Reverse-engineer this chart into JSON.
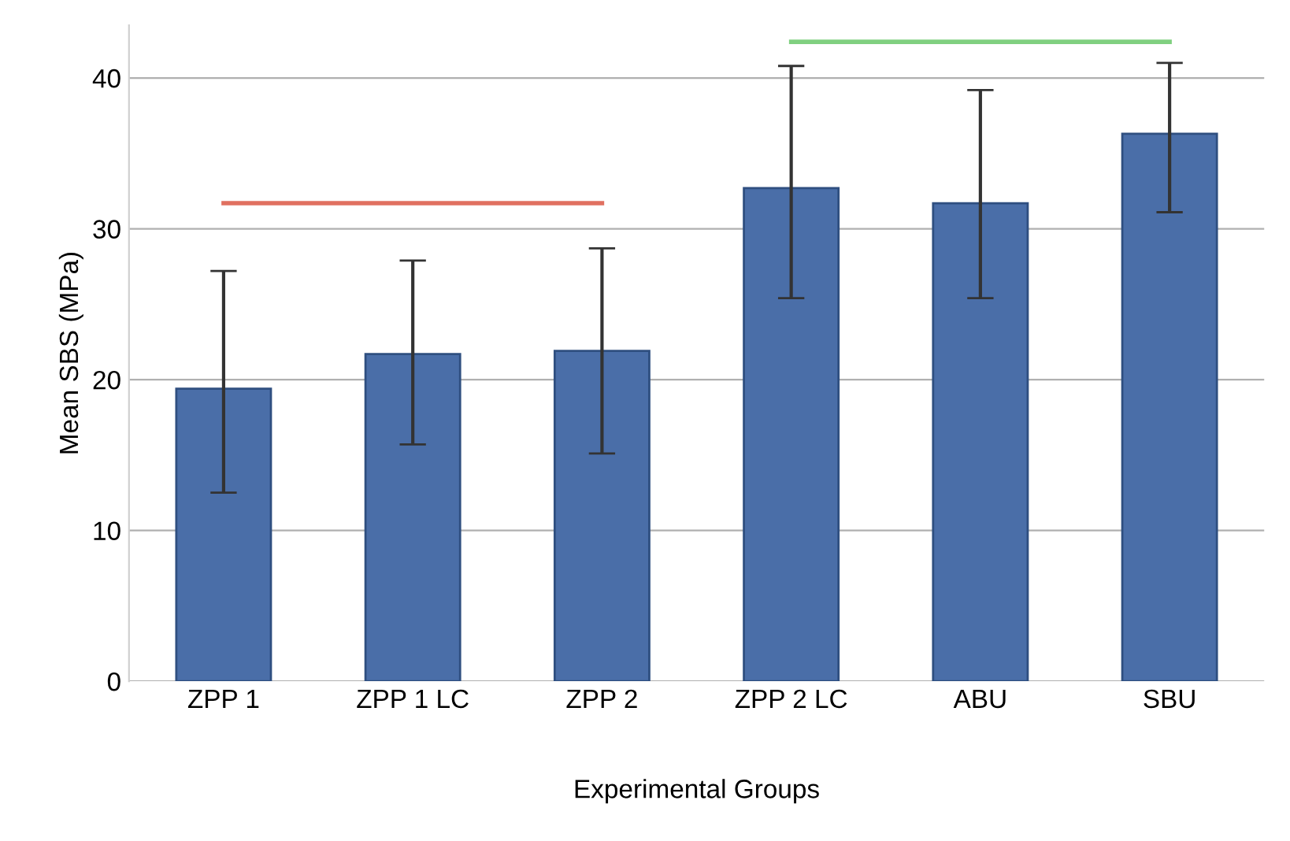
{
  "chart_data": {
    "type": "bar",
    "xlabel": "Experimental Groups",
    "ylabel": "Mean SBS (MPa)",
    "categories": [
      "ZPP 1",
      "ZPP 1 LC",
      "ZPP 2",
      "ZPP 2 LC",
      "ABU",
      "SBU"
    ],
    "series": [
      {
        "color": "#4a6ea8",
        "values": [
          19.4,
          21.7,
          21.9,
          32.7,
          31.7,
          36.3
        ],
        "errors": [
          [
            12.5,
            27.2
          ],
          [
            15.7,
            27.9
          ],
          [
            15.1,
            28.7
          ],
          [
            25.4,
            40.8
          ],
          [
            25.4,
            39.2
          ],
          [
            31.1,
            41.0
          ]
        ]
      },
      {
        "type": "line",
        "color": "#e07060",
        "values": [
          31.7,
          31.7,
          31.7,
          null,
          null,
          null
        ]
      },
      {
        "type": "line",
        "color": "#80d080",
        "values": [
          null,
          null,
          null,
          42.4,
          42.4,
          42.4
        ]
      }
    ],
    "ylim": [
      0,
      43.5
    ],
    "yticks": [
      0,
      10,
      20,
      30,
      40
    ],
    "grid": "y",
    "marker": "none",
    "line_style": "solid"
  }
}
